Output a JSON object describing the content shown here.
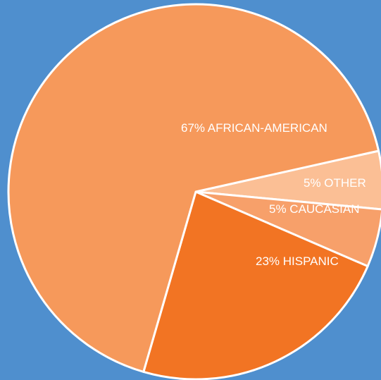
{
  "colors": {
    "background": "#4f8fce",
    "slice_border": "#ffffff"
  },
  "chart_data": {
    "type": "pie",
    "legend": "none",
    "slices": [
      {
        "label": "67% AFRICAN-AMERICAN",
        "value": 67,
        "color": "#f6995b"
      },
      {
        "label": "5% OTHER",
        "value": 5,
        "color": "#fbbf95"
      },
      {
        "label": "5% CAUCASIAN",
        "value": 5,
        "color": "#f7a06a"
      },
      {
        "label": "23% HISPANIC",
        "value": 23,
        "color": "#f27423"
      }
    ]
  }
}
